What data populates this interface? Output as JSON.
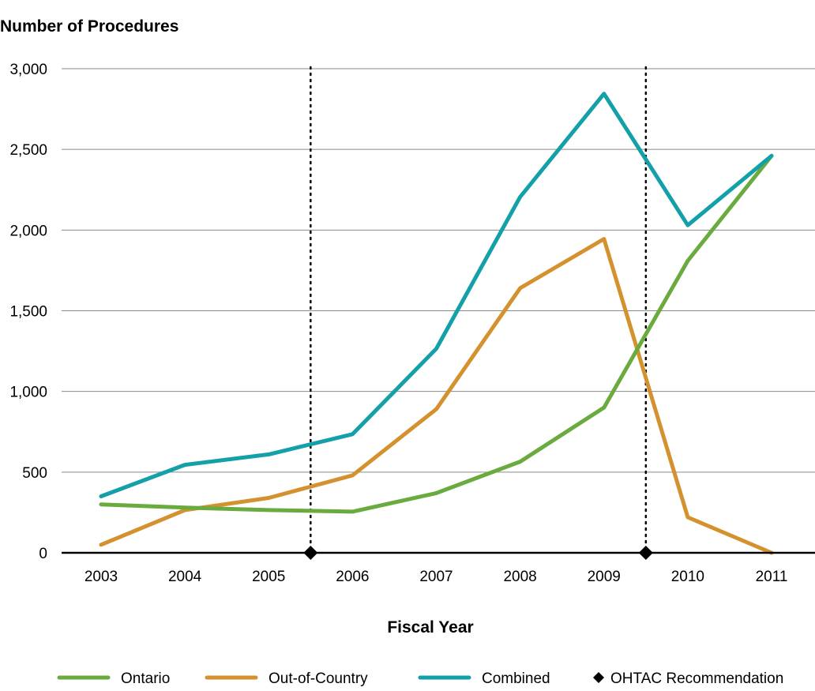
{
  "chart_data": {
    "type": "line",
    "ylabel": "Number of Procedures",
    "xlabel": "Fiscal Year",
    "categories": [
      "2003",
      "2004",
      "2005",
      "2006",
      "2007",
      "2008",
      "2009",
      "2010",
      "2011"
    ],
    "ylim": [
      0,
      3000
    ],
    "yticks": [
      0,
      500,
      1000,
      1500,
      2000,
      2500,
      3000
    ],
    "ytick_labels": [
      "0",
      "500",
      "1,000",
      "1,500",
      "2,000",
      "2,500",
      "3,000"
    ],
    "grid": true,
    "series": [
      {
        "name": "Ontario",
        "color": "#6aab3f",
        "values": [
          300,
          280,
          265,
          255,
          370,
          565,
          900,
          1810,
          2460
        ]
      },
      {
        "name": "Out-of-Country",
        "color": "#d4922f",
        "values": [
          50,
          265,
          340,
          480,
          890,
          1640,
          1945,
          220,
          0
        ]
      },
      {
        "name": "Combined",
        "color": "#13a0a8",
        "values": [
          350,
          545,
          610,
          735,
          1265,
          2205,
          2845,
          2030,
          2460
        ]
      }
    ],
    "markers": {
      "name": "OHTAC Recommendation",
      "color": "#000000",
      "shape": "diamond",
      "x": [
        2005.5,
        2009.5
      ]
    },
    "legend_position": "bottom"
  }
}
